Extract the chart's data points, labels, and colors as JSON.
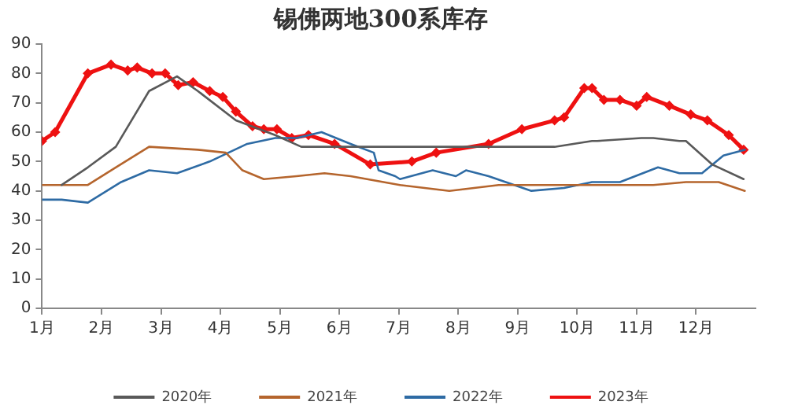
{
  "chart_data": {
    "type": "line",
    "title": "锡佛两地300系库存",
    "xlim": [
      1,
      13
    ],
    "xticks": [
      {
        "value": 1,
        "label": "1月"
      },
      {
        "value": 2,
        "label": "2月"
      },
      {
        "value": 3,
        "label": "3月"
      },
      {
        "value": 4,
        "label": "4月"
      },
      {
        "value": 5,
        "label": "5月"
      },
      {
        "value": 6,
        "label": "6月"
      },
      {
        "value": 7,
        "label": "7月"
      },
      {
        "value": 8,
        "label": "8月"
      },
      {
        "value": 9,
        "label": "9月"
      },
      {
        "value": 10,
        "label": "10月"
      },
      {
        "value": 11,
        "label": "11月"
      },
      {
        "value": 12,
        "label": "12月"
      }
    ],
    "ylim": [
      0,
      90
    ],
    "yticks": [
      0,
      10,
      20,
      30,
      40,
      50,
      60,
      70,
      80,
      90
    ],
    "grid": false,
    "legend": "bottom",
    "marker": "none",
    "series": [
      {
        "name": "2020年",
        "color": "#595959",
        "x": [
          1.33,
          1.77,
          2.24,
          2.8,
          3.27,
          3.62,
          4.26,
          4.92,
          5.36,
          7.0,
          8.5,
          9.62,
          10.25,
          10.34,
          11.08,
          11.28,
          11.72,
          11.83,
          12.27,
          12.8
        ],
        "values": [
          42,
          48,
          55,
          74,
          79,
          74,
          64,
          59,
          55,
          55,
          55,
          55,
          57,
          57,
          58,
          58,
          57,
          57,
          49,
          44
        ]
      },
      {
        "name": "2021年",
        "color": "#b5652d",
        "x": [
          1,
          1.77,
          2.24,
          2.8,
          3.62,
          4.09,
          4.37,
          4.73,
          5.28,
          5.75,
          6.19,
          7.02,
          7.85,
          8.68,
          9.43,
          11.28,
          11.83,
          12.38,
          12.82
        ],
        "values": [
          42,
          42,
          48,
          55,
          54,
          53,
          47,
          44,
          45,
          46,
          45,
          42,
          40,
          42,
          42,
          42,
          43,
          43,
          40
        ]
      },
      {
        "name": "2022年",
        "color": "#2e6ba4",
        "x": [
          1,
          1.33,
          1.77,
          2.33,
          2.8,
          3.27,
          3.82,
          4.45,
          4.92,
          5.28,
          5.7,
          6.19,
          6.58,
          6.66,
          6.94,
          7.02,
          7.57,
          7.96,
          8.13,
          8.51,
          9.23,
          9.78,
          10.25,
          10.72,
          11.36,
          11.72,
          12.1,
          12.46,
          12.82
        ],
        "values": [
          37,
          37,
          36,
          43,
          47,
          46,
          50,
          56,
          58,
          58,
          60,
          56,
          53,
          47,
          45,
          44,
          47,
          45,
          47,
          45,
          40,
          41,
          43,
          43,
          48,
          46,
          46,
          52,
          54
        ]
      },
      {
        "name": "2023年",
        "color": "#ee1111",
        "marker": "diamond",
        "x": [
          1,
          1.22,
          1.77,
          2.16,
          2.44,
          2.6,
          2.85,
          3.07,
          3.29,
          3.54,
          3.82,
          4.04,
          4.26,
          4.54,
          4.73,
          4.95,
          5.2,
          5.48,
          5.92,
          6.52,
          7.22,
          7.63,
          8.51,
          9.07,
          9.62,
          9.78,
          10.12,
          10.25,
          10.45,
          10.72,
          11.0,
          11.17,
          11.55,
          11.91,
          12.19,
          12.55,
          12.8
        ],
        "values": [
          57,
          60,
          80,
          83,
          81,
          82,
          80,
          80,
          76,
          77,
          74,
          72,
          67,
          62,
          61,
          61,
          58,
          59,
          56,
          49,
          50,
          53,
          56,
          61,
          64,
          65,
          75,
          75,
          71,
          71,
          69,
          72,
          69,
          66,
          64,
          59,
          54
        ]
      }
    ]
  }
}
